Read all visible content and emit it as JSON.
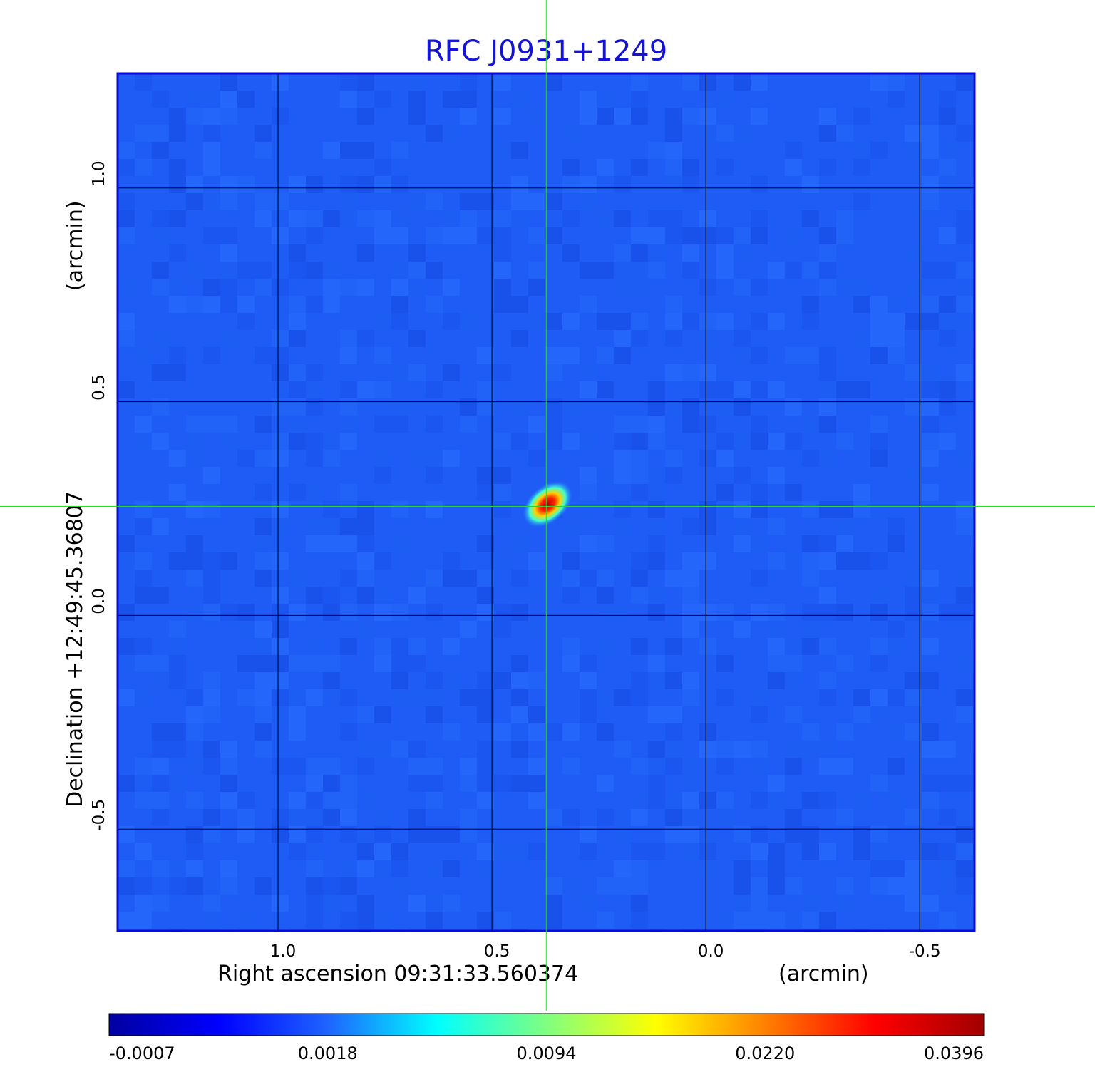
{
  "chart_data": {
    "type": "heatmap",
    "title": "RFC J0931+1249",
    "title_color": "#1414d2",
    "xlabel": "Right ascension  09:31:33.560374",
    "xlabel_unit": "(arcmin)",
    "ylabel": "Declination  +12:49:45.36807",
    "ylabel_unit": "(arcmin)",
    "x_ticks": [
      1.0,
      0.5,
      0.0,
      -0.5
    ],
    "x_tick_labels": [
      "1.0",
      "0.5",
      "0.0",
      "-0.5"
    ],
    "y_ticks": [
      1.0,
      0.5,
      0.0,
      -0.5
    ],
    "y_tick_labels": [
      "1.0",
      "0.5",
      "0.0",
      "-0.5"
    ],
    "xlim": [
      1.375,
      -0.628
    ],
    "ylim": [
      -0.738,
      1.268
    ],
    "x_reversed": true,
    "grid": true,
    "grid_color": "#000000",
    "crosshair": {
      "x": 0.373,
      "y": 0.255,
      "color": "#22dd22"
    },
    "source_peak": {
      "x": 0.37,
      "y": 0.26,
      "value": 0.0396
    },
    "background_level": 0.0006,
    "colormap": "jet",
    "colorbar": {
      "tick_values": [
        -0.0007,
        0.0018,
        0.0094,
        0.022,
        0.0396
      ],
      "tick_labels": [
        "-0.0007",
        "0.0018",
        "0.0094",
        "0.0220",
        "0.0396"
      ],
      "min": -0.0007,
      "max": 0.0396,
      "stops": [
        "#0000a0",
        "#0000ff",
        "#1e64ff",
        "#00ffff",
        "#80ff80",
        "#ffff00",
        "#ff8000",
        "#ff0000",
        "#a00000"
      ]
    }
  }
}
